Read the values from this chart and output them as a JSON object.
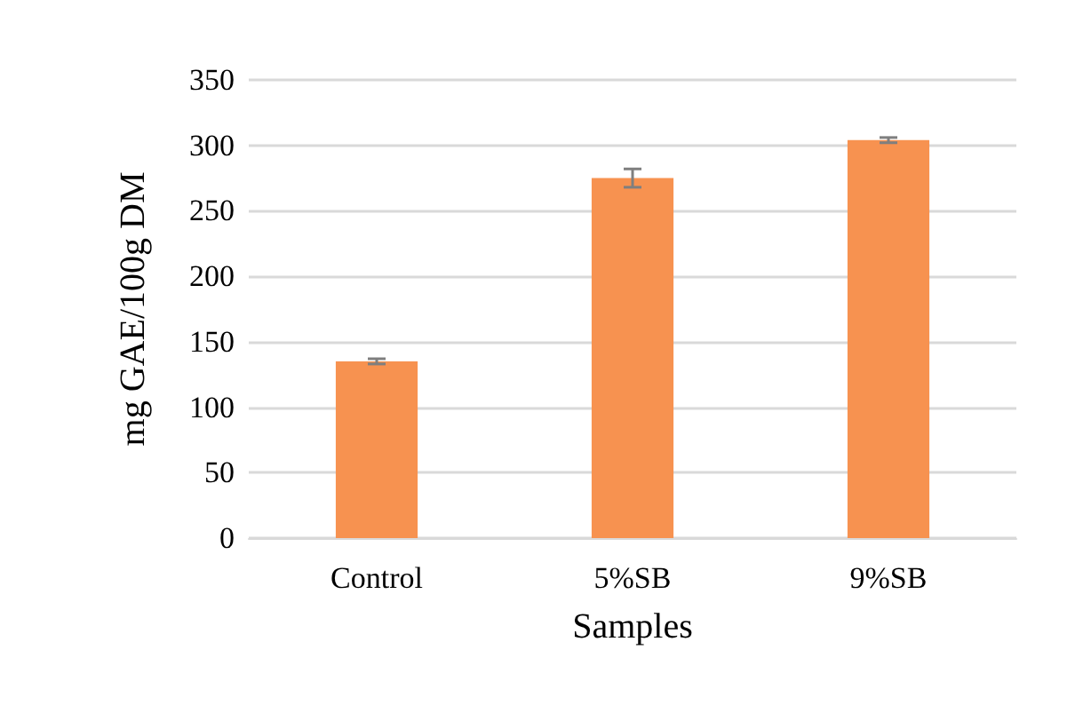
{
  "chart_data": {
    "type": "bar",
    "xlabel": "Samples",
    "ylabel": "mg GAE/100g DM",
    "categories": [
      "Control",
      "5%SB",
      "9%SB"
    ],
    "values": [
      135,
      275,
      304
    ],
    "errors": [
      2,
      7,
      2
    ],
    "color": "#f79250",
    "ylim": [
      0,
      350
    ],
    "yticks": [
      0,
      50,
      100,
      150,
      200,
      250,
      300,
      350
    ],
    "grid": "y"
  }
}
